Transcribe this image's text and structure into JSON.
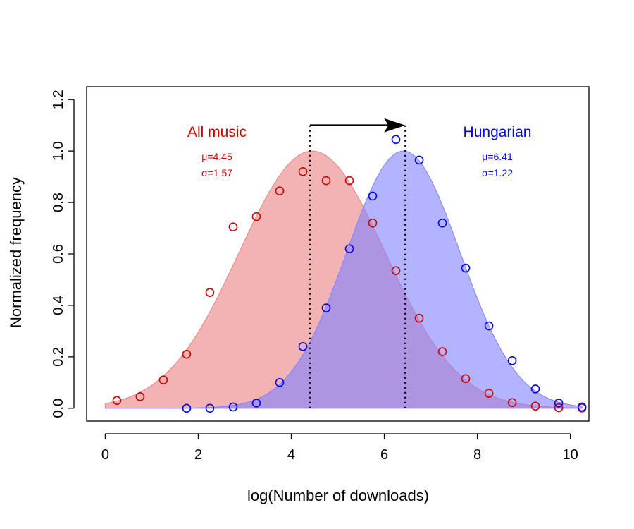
{
  "chart_data": {
    "type": "area",
    "xlabel": "log(Number of downloads)",
    "ylabel": "Normalized frequency",
    "xlim": [
      -0.4,
      10.4
    ],
    "ylim": [
      -0.05,
      1.25
    ],
    "xticks": [
      "0",
      "2",
      "4",
      "6",
      "8",
      "10"
    ],
    "yticks": [
      "0.0",
      "0.2",
      "0.4",
      "0.6",
      "0.8",
      "1.0",
      "1.2"
    ],
    "grid": false,
    "series": [
      {
        "name": "All music",
        "color": "#cc0000",
        "fill": "#e88080",
        "mu": 4.45,
        "sigma": 1.57,
        "mu_label": "μ=4.45",
        "sigma_label": "σ=1.57",
        "points": [
          [
            0.25,
            0.03
          ],
          [
            0.75,
            0.045
          ],
          [
            1.25,
            0.11
          ],
          [
            1.75,
            0.21
          ],
          [
            2.25,
            0.45
          ],
          [
            2.75,
            0.705
          ],
          [
            3.25,
            0.745
          ],
          [
            3.75,
            0.845
          ],
          [
            4.25,
            0.92
          ],
          [
            4.75,
            0.885
          ],
          [
            5.25,
            0.885
          ],
          [
            5.75,
            0.72
          ],
          [
            6.25,
            0.535
          ],
          [
            6.75,
            0.35
          ],
          [
            7.25,
            0.22
          ],
          [
            7.75,
            0.115
          ],
          [
            8.25,
            0.058
          ],
          [
            8.75,
            0.022
          ],
          [
            9.25,
            0.008
          ],
          [
            9.75,
            0.002
          ],
          [
            10.25,
            0.001
          ]
        ]
      },
      {
        "name": "Hungarian",
        "color": "#0000ee",
        "fill": "#8080ff",
        "mu": 6.41,
        "sigma": 1.22,
        "mu_label": "μ=6.41",
        "sigma_label": "σ=1.22",
        "points": [
          [
            1.75,
            0.0
          ],
          [
            2.25,
            0.0
          ],
          [
            2.75,
            0.005
          ],
          [
            3.25,
            0.02
          ],
          [
            3.75,
            0.1
          ],
          [
            4.25,
            0.24
          ],
          [
            4.75,
            0.39
          ],
          [
            5.25,
            0.62
          ],
          [
            5.75,
            0.825
          ],
          [
            6.25,
            1.045
          ],
          [
            6.75,
            0.965
          ],
          [
            7.25,
            0.72
          ],
          [
            7.75,
            0.545
          ],
          [
            8.25,
            0.32
          ],
          [
            8.75,
            0.185
          ],
          [
            9.25,
            0.075
          ],
          [
            9.75,
            0.02
          ],
          [
            10.25,
            0.005
          ]
        ]
      }
    ],
    "annotations": {
      "shift_arrow": {
        "from_x": 4.4,
        "to_x": 6.45,
        "y": 1.1
      }
    }
  }
}
